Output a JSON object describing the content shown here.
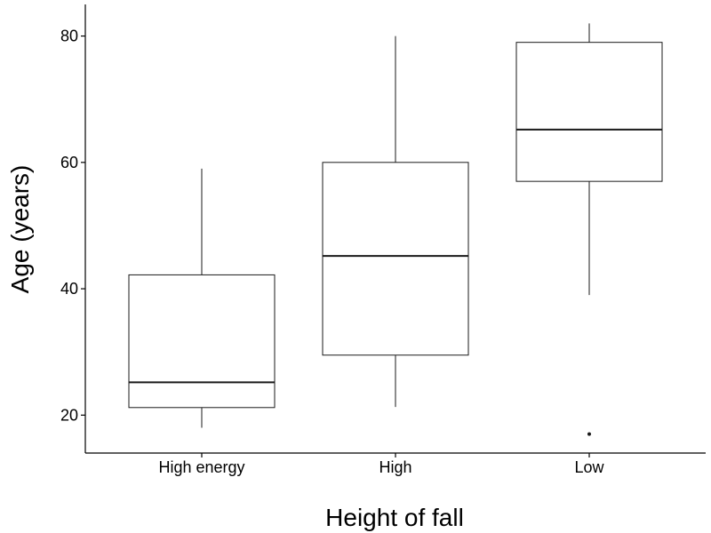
{
  "chart_data": {
    "type": "boxplot",
    "xlabel": "Height of fall",
    "ylabel": "Age (years)",
    "ylim": [
      14,
      85
    ],
    "yticks": [
      20,
      40,
      60,
      80
    ],
    "grid": false,
    "legend": "none",
    "categories": [
      "High energy",
      "High",
      "Low"
    ],
    "boxes": [
      {
        "category": "High energy",
        "whisker_low": 18,
        "q1": 21.2,
        "median": 25.2,
        "q3": 42.2,
        "whisker_high": 59,
        "outliers": []
      },
      {
        "category": "High",
        "whisker_low": 21.3,
        "q1": 29.5,
        "median": 45.2,
        "q3": 60,
        "whisker_high": 80,
        "outliers": []
      },
      {
        "category": "Low",
        "whisker_low": 39,
        "q1": 57,
        "median": 65.2,
        "q3": 79,
        "whisker_high": 82,
        "outliers": [
          17
        ]
      }
    ],
    "colors": {
      "stroke": "#1a1a1a",
      "fill": "#ffffff",
      "axis": "#000000"
    }
  }
}
